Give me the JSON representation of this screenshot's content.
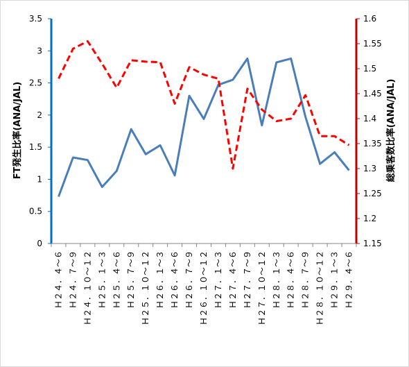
{
  "chart_data": {
    "type": "line",
    "categories": [
      "Ｈ２４．４～６",
      "Ｈ２４．７～９",
      "Ｈ２４．１０～１２",
      "Ｈ２５．１～３",
      "Ｈ２５．４～６",
      "Ｈ２５．７～９",
      "Ｈ２５．１０～１２",
      "Ｈ２６．１～３",
      "Ｈ２６．４～６",
      "Ｈ２６．７～９",
      "Ｈ２６．１０～１２",
      "Ｈ２７．１～３",
      "Ｈ２７．４～６",
      "Ｈ２７．７～９",
      "Ｈ２７．１０～１２",
      "Ｈ２８．１～３",
      "Ｈ２８．４～６",
      "Ｈ２８．７～９",
      "Ｈ２８．１０～１２",
      "Ｈ２９．１～３",
      "Ｈ２９．４～６"
    ],
    "series": [
      {
        "name": "FT発生比率(ANA/JAL)",
        "axis": "left",
        "color": "#4a7ebb",
        "style": "solid",
        "values": [
          0.73,
          1.34,
          1.3,
          0.88,
          1.13,
          1.78,
          1.39,
          1.53,
          1.06,
          2.3,
          1.94,
          2.47,
          2.55,
          2.88,
          1.84,
          2.82,
          2.88,
          1.97,
          1.24,
          1.42,
          1.14
        ]
      },
      {
        "name": "総乗客数比率(ANA/JAL)",
        "axis": "right",
        "color": "#ff0000",
        "style": "dashed",
        "values": [
          1.48,
          1.54,
          1.555,
          1.51,
          1.462,
          1.517,
          1.514,
          1.513,
          1.43,
          1.503,
          1.488,
          1.48,
          1.3,
          1.46,
          1.418,
          1.395,
          1.4,
          1.447,
          1.365,
          1.365,
          1.347
        ]
      }
    ],
    "ylabel_left": "FT発生比率(ANA/JAL)",
    "ylabel_right": "総乗客数比率(ANA/JAL)",
    "ylim_left": [
      0,
      3.5
    ],
    "ylim_right": [
      1.15,
      1.6
    ],
    "yticks_left": [
      "0",
      "0.5",
      "1",
      "1.5",
      "2",
      "2.5",
      "3",
      "3.5"
    ],
    "yticks_right": [
      "1.15",
      "1.2",
      "1.25",
      "1.3",
      "1.35",
      "1.4",
      "1.45",
      "1.5",
      "1.55",
      "1.6"
    ],
    "left_axis_color": "#0070c0",
    "right_axis_color": "#c00000",
    "grid": false,
    "legend": "none"
  }
}
